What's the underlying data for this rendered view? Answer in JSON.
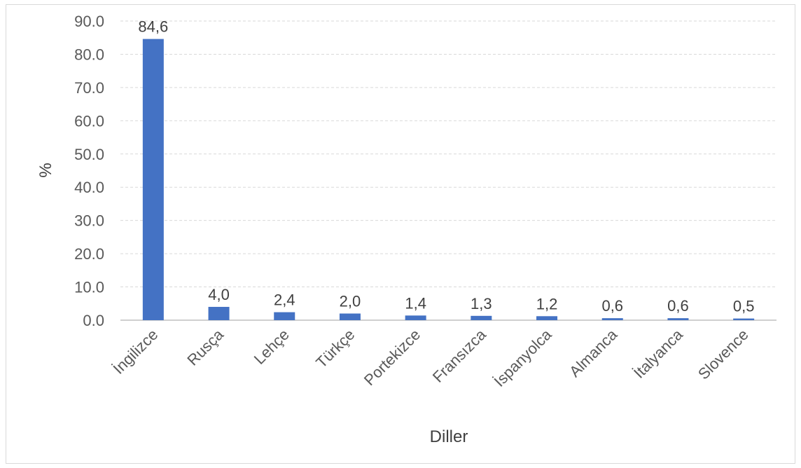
{
  "chart_data": {
    "type": "bar",
    "title": "",
    "xlabel": "Diller",
    "ylabel": "%",
    "ylim": [
      0,
      90
    ],
    "yticks": [
      "0.0",
      "10.0",
      "20.0",
      "30.0",
      "40.0",
      "50.0",
      "60.0",
      "70.0",
      "80.0",
      "90.0"
    ],
    "grid": true,
    "categories": [
      "İngilizce",
      "Rusça",
      "Lehçe",
      "Türkçe",
      "Portekizce",
      "Fransızca",
      "İspanyolca",
      "Almanca",
      "İtalyanca",
      "Slovence"
    ],
    "values": [
      84.6,
      4.0,
      2.4,
      2.0,
      1.4,
      1.3,
      1.2,
      0.6,
      0.6,
      0.5
    ],
    "data_labels": [
      "84,6",
      "4,0",
      "2,4",
      "2,0",
      "1,4",
      "1,3",
      "1,2",
      "0,6",
      "0,6",
      "0,5"
    ],
    "colors": {
      "bar": "#4472C4",
      "grid": "#d9d9d9",
      "axis": "#bfbfbf"
    }
  }
}
